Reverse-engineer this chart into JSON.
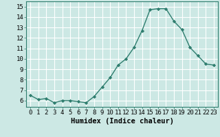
{
  "x": [
    0,
    1,
    2,
    3,
    4,
    5,
    6,
    7,
    8,
    9,
    10,
    11,
    12,
    13,
    14,
    15,
    16,
    17,
    18,
    19,
    20,
    21,
    22,
    23
  ],
  "y": [
    6.5,
    6.1,
    6.2,
    5.8,
    6.0,
    6.0,
    5.9,
    5.8,
    6.4,
    7.3,
    8.2,
    9.4,
    10.0,
    11.1,
    12.7,
    14.7,
    14.8,
    14.8,
    13.6,
    12.8,
    11.1,
    10.3,
    9.5,
    9.4
  ],
  "line_color": "#2e7d6e",
  "marker": "D",
  "marker_size": 2.2,
  "bg_color": "#cce8e4",
  "grid_color": "#ffffff",
  "xlabel": "Humidex (Indice chaleur)",
  "xlim": [
    -0.5,
    23.5
  ],
  "ylim": [
    5.4,
    15.5
  ],
  "yticks": [
    6,
    7,
    8,
    9,
    10,
    11,
    12,
    13,
    14,
    15
  ],
  "xticks": [
    0,
    1,
    2,
    3,
    4,
    5,
    6,
    7,
    8,
    9,
    10,
    11,
    12,
    13,
    14,
    15,
    16,
    17,
    18,
    19,
    20,
    21,
    22,
    23
  ],
  "tick_label_fontsize": 6.5,
  "xlabel_fontsize": 7.5,
  "linewidth": 1.0
}
